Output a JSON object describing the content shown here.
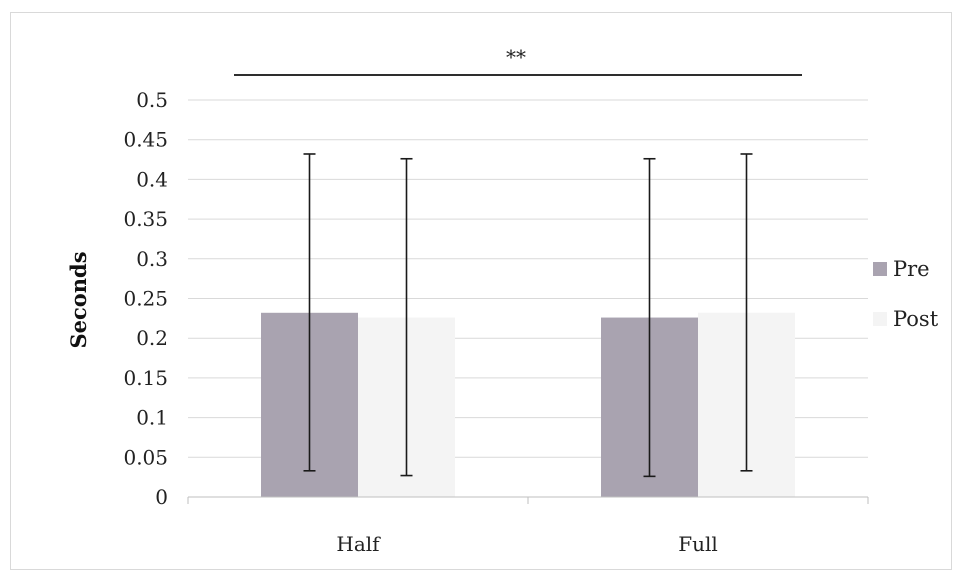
{
  "chart_data": {
    "type": "bar",
    "title": "",
    "xlabel": "",
    "ylabel": "Seconds",
    "categories": [
      "Half",
      "Full"
    ],
    "ylim": [
      0,
      0.5
    ],
    "yticks": [
      "0",
      "0.05",
      "0.1",
      "0.15",
      "0.2",
      "0.25",
      "0.3",
      "0.35",
      "0.4",
      "0.45",
      "0.5"
    ],
    "grid": true,
    "legend_position": "right",
    "series": [
      {
        "name": "Pre",
        "color": "#a9a3b0",
        "values": [
          0.232,
          0.226
        ],
        "error_low": [
          0.033,
          0.026
        ],
        "error_high": [
          0.432,
          0.426
        ]
      },
      {
        "name": "Post",
        "color": "#f4f4f4",
        "values": [
          0.226,
          0.232
        ],
        "error_low": [
          0.027,
          0.033
        ],
        "error_high": [
          0.426,
          0.432
        ]
      }
    ],
    "annotation": {
      "text": "**",
      "span_from": "Half",
      "span_to": "Full"
    }
  }
}
